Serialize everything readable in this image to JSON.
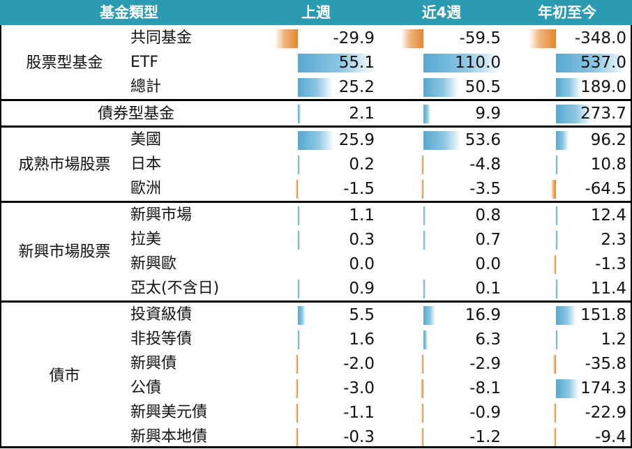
{
  "header": {
    "col0": "基金類型",
    "col1": "上週",
    "col2": "近4週",
    "col3": "年初至今"
  },
  "chart_data": {
    "type": "table",
    "columns": [
      "上週",
      "近4週",
      "年初至今"
    ],
    "groups": [
      {
        "name": "股票型基金",
        "rows": [
          {
            "label": "共同基金",
            "values": [
              -29.9,
              -59.5,
              -348.0
            ]
          },
          {
            "label": "ETF",
            "values": [
              55.1,
              110.0,
              537.0
            ]
          },
          {
            "label": "總計",
            "values": [
              25.2,
              50.5,
              189.0
            ]
          }
        ]
      },
      {
        "name": "債券型基金",
        "rows": [
          {
            "label": "",
            "values": [
              2.1,
              9.9,
              273.7
            ]
          }
        ]
      },
      {
        "name": "成熟市場股票",
        "rows": [
          {
            "label": "美國",
            "values": [
              25.9,
              53.6,
              96.2
            ]
          },
          {
            "label": "日本",
            "values": [
              0.2,
              -4.8,
              10.8
            ]
          },
          {
            "label": "歐洲",
            "values": [
              -1.5,
              -3.5,
              -64.5
            ]
          }
        ]
      },
      {
        "name": "新興市場股票",
        "rows": [
          {
            "label": "新興市場",
            "values": [
              1.1,
              0.8,
              12.4
            ]
          },
          {
            "label": "拉美",
            "values": [
              0.3,
              0.7,
              2.3
            ]
          },
          {
            "label": "新興歐",
            "values": [
              0.0,
              0.0,
              -1.3
            ]
          },
          {
            "label": "亞太(不含日)",
            "values": [
              0.9,
              0.1,
              11.4
            ]
          }
        ]
      },
      {
        "name": "債市",
        "rows": [
          {
            "label": "投資級債",
            "values": [
              5.5,
              16.9,
              151.8
            ]
          },
          {
            "label": "非投等債",
            "values": [
              1.6,
              6.3,
              1.2
            ]
          },
          {
            "label": "新興債",
            "values": [
              -2.0,
              -2.9,
              -35.8
            ]
          },
          {
            "label": "公債",
            "values": [
              -3.0,
              -8.1,
              174.3
            ]
          },
          {
            "label": "新興美元債",
            "values": [
              -1.1,
              -0.9,
              -22.9
            ]
          },
          {
            "label": "新興本地債",
            "values": [
              -0.3,
              -1.2,
              -9.4
            ]
          }
        ]
      }
    ]
  }
}
